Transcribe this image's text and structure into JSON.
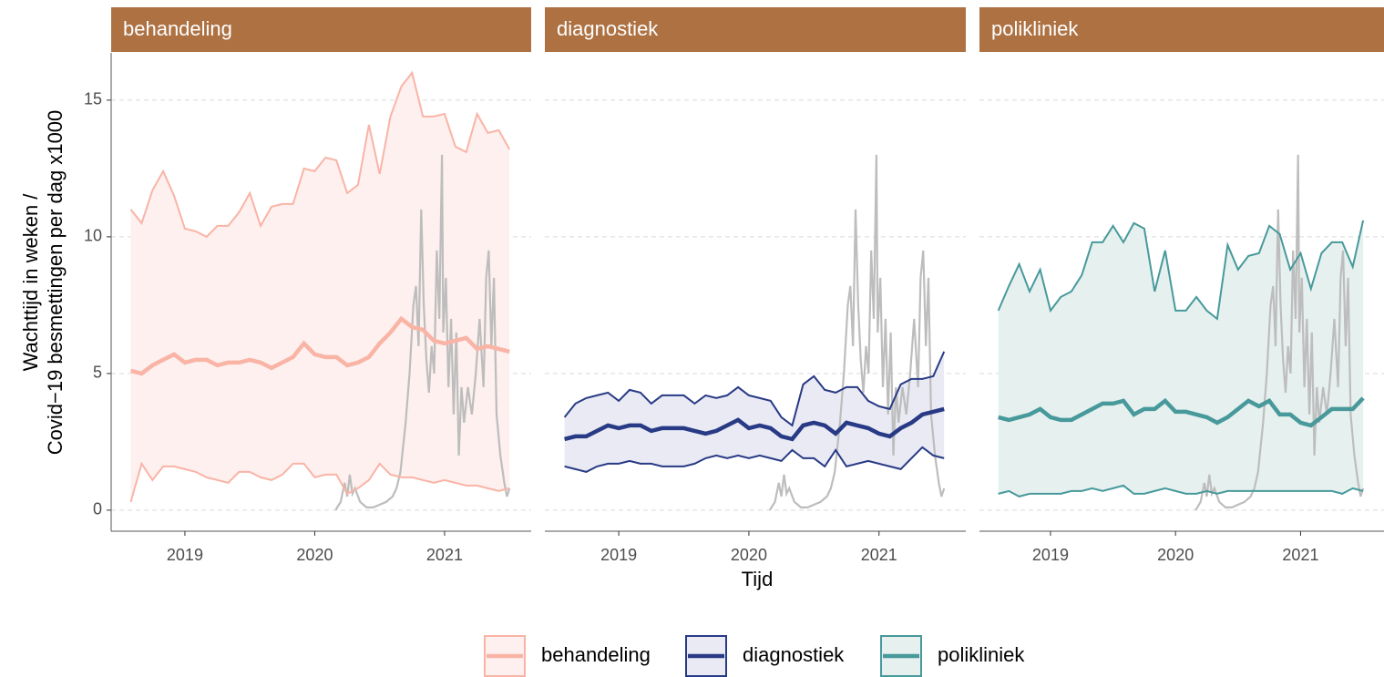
{
  "chart_data": {
    "type": "line",
    "y_label": [
      "Wachttijd in weken /",
      "Covid−19 besmettingen per dag x1000"
    ],
    "x_label": "Tijd",
    "xlim": [
      2018.432,
      2021.667
    ],
    "xticks": [
      2019,
      2020,
      2021
    ],
    "ylim": [
      -0.77,
      16.73
    ],
    "yticks": [
      0,
      5,
      10,
      15
    ],
    "grid": true,
    "legend_position": "bottom",
    "strip_color": "#ad7142",
    "x": [
      2018.583,
      2018.667,
      2018.75,
      2018.833,
      2018.917,
      2019.0,
      2019.083,
      2019.167,
      2019.25,
      2019.333,
      2019.417,
      2019.5,
      2019.583,
      2019.667,
      2019.75,
      2019.833,
      2019.917,
      2020.0,
      2020.083,
      2020.167,
      2020.25,
      2020.333,
      2020.417,
      2020.5,
      2020.583,
      2020.667,
      2020.75,
      2020.833,
      2020.917,
      2021.0,
      2021.083,
      2021.167,
      2021.25,
      2021.333,
      2021.417,
      2021.5
    ],
    "series": [
      {
        "name": "behandeling",
        "color": "#f9b4a6",
        "fill": "#fdf0ee",
        "upper": [
          11.0,
          10.5,
          11.7,
          12.4,
          11.5,
          10.3,
          10.2,
          10.0,
          10.4,
          10.4,
          10.9,
          11.6,
          10.4,
          11.1,
          11.2,
          11.2,
          12.5,
          12.4,
          12.9,
          12.8,
          11.6,
          11.9,
          14.1,
          12.3,
          14.4,
          15.5,
          16.0,
          14.4,
          14.4,
          14.5,
          13.3,
          13.1,
          14.5,
          13.8,
          13.9,
          13.2
        ],
        "median": [
          5.1,
          5.0,
          5.3,
          5.5,
          5.7,
          5.4,
          5.5,
          5.5,
          5.3,
          5.4,
          5.4,
          5.5,
          5.4,
          5.2,
          5.4,
          5.6,
          6.1,
          5.7,
          5.6,
          5.6,
          5.3,
          5.4,
          5.6,
          6.1,
          6.5,
          7.0,
          6.7,
          6.6,
          6.2,
          6.1,
          6.2,
          6.3,
          5.9,
          6.0,
          5.9,
          5.8
        ],
        "lower": [
          0.3,
          1.7,
          1.1,
          1.6,
          1.6,
          1.5,
          1.4,
          1.2,
          1.1,
          1.0,
          1.4,
          1.4,
          1.2,
          1.1,
          1.3,
          1.7,
          1.7,
          1.2,
          1.3,
          1.3,
          0.6,
          0.8,
          1.1,
          1.7,
          1.3,
          1.2,
          1.2,
          1.1,
          1.0,
          1.1,
          1.0,
          0.9,
          0.9,
          0.8,
          0.7,
          0.8
        ]
      },
      {
        "name": "diagnostiek",
        "color": "#283a85",
        "fill": "#e9eaf4",
        "upper": [
          3.4,
          3.9,
          4.1,
          4.2,
          4.3,
          4.0,
          4.4,
          4.3,
          3.9,
          4.2,
          4.2,
          4.2,
          3.9,
          4.2,
          4.1,
          4.2,
          4.5,
          4.2,
          4.1,
          4.0,
          3.4,
          3.1,
          4.6,
          4.9,
          4.4,
          4.3,
          4.5,
          4.5,
          4.0,
          3.8,
          3.7,
          4.6,
          4.8,
          4.8,
          4.9,
          5.8
        ],
        "median": [
          2.6,
          2.7,
          2.7,
          2.9,
          3.1,
          3.0,
          3.1,
          3.1,
          2.9,
          3.0,
          3.0,
          3.0,
          2.9,
          2.8,
          2.9,
          3.1,
          3.3,
          3.0,
          3.1,
          3.0,
          2.7,
          2.6,
          3.1,
          3.2,
          3.1,
          2.8,
          3.2,
          3.1,
          3.0,
          2.8,
          2.7,
          3.0,
          3.2,
          3.5,
          3.6,
          3.7
        ],
        "lower": [
          1.6,
          1.5,
          1.4,
          1.6,
          1.7,
          1.7,
          1.8,
          1.7,
          1.7,
          1.6,
          1.6,
          1.6,
          1.7,
          1.9,
          2.0,
          1.9,
          2.0,
          1.9,
          2.0,
          1.9,
          1.8,
          2.2,
          1.9,
          1.9,
          1.6,
          2.2,
          1.6,
          1.7,
          1.8,
          1.7,
          1.6,
          1.5,
          1.9,
          2.3,
          2.0,
          1.9
        ]
      },
      {
        "name": "polikliniek",
        "color": "#48999b",
        "fill": "#e6f0ef",
        "upper": [
          7.3,
          8.2,
          9.0,
          8.0,
          8.8,
          7.3,
          7.8,
          8.0,
          8.6,
          9.8,
          9.8,
          10.4,
          9.8,
          10.5,
          10.3,
          8.0,
          9.5,
          7.3,
          7.3,
          7.8,
          7.3,
          7.0,
          9.7,
          8.8,
          9.3,
          9.4,
          10.4,
          10.1,
          8.8,
          9.4,
          8.1,
          9.4,
          9.8,
          9.8,
          8.9,
          10.6
        ],
        "median": [
          3.4,
          3.3,
          3.4,
          3.5,
          3.7,
          3.4,
          3.3,
          3.3,
          3.5,
          3.7,
          3.9,
          3.9,
          4.0,
          3.5,
          3.7,
          3.7,
          4.0,
          3.6,
          3.6,
          3.5,
          3.4,
          3.2,
          3.4,
          3.7,
          4.0,
          3.8,
          4.0,
          3.5,
          3.5,
          3.2,
          3.1,
          3.4,
          3.7,
          3.7,
          3.7,
          4.1
        ],
        "lower": [
          0.6,
          0.7,
          0.5,
          0.6,
          0.6,
          0.6,
          0.6,
          0.7,
          0.7,
          0.8,
          0.7,
          0.8,
          0.9,
          0.6,
          0.6,
          0.7,
          0.8,
          0.7,
          0.6,
          0.6,
          0.7,
          0.6,
          0.7,
          0.7,
          0.7,
          0.7,
          0.7,
          0.7,
          0.7,
          0.7,
          0.7,
          0.7,
          0.7,
          0.6,
          0.8,
          0.7
        ]
      }
    ],
    "covid": {
      "color": "#bdbdbd",
      "x": [
        2020.16,
        2020.2,
        2020.23,
        2020.25,
        2020.27,
        2020.29,
        2020.31,
        2020.35,
        2020.4,
        2020.45,
        2020.5,
        2020.55,
        2020.6,
        2020.63,
        2020.66,
        2020.7,
        2020.73,
        2020.76,
        2020.78,
        2020.8,
        2020.82,
        2020.84,
        2020.86,
        2020.88,
        2020.9,
        2020.92,
        2020.94,
        2020.96,
        2020.98,
        2020.99,
        2021.01,
        2021.03,
        2021.05,
        2021.07,
        2021.09,
        2021.11,
        2021.13,
        2021.15,
        2021.18,
        2021.21,
        2021.24,
        2021.27,
        2021.3,
        2021.32,
        2021.34,
        2021.36,
        2021.38,
        2021.4,
        2021.43,
        2021.46,
        2021.48,
        2021.5
      ],
      "values": [
        0,
        0.3,
        1.0,
        0.5,
        1.3,
        0.6,
        0.8,
        0.3,
        0.1,
        0.1,
        0.2,
        0.3,
        0.5,
        0.8,
        1.4,
        3.2,
        5.0,
        7.5,
        8.2,
        6.0,
        11.0,
        7.5,
        5.5,
        4.3,
        6.0,
        5.0,
        9.5,
        7.0,
        13.0,
        6.5,
        8.5,
        4.5,
        7.0,
        3.5,
        6.5,
        2.0,
        4.5,
        3.2,
        4.5,
        3.5,
        5.0,
        7.0,
        4.5,
        8.5,
        9.5,
        6.0,
        8.5,
        3.5,
        2.0,
        1.0,
        0.5,
        0.8
      ]
    }
  }
}
